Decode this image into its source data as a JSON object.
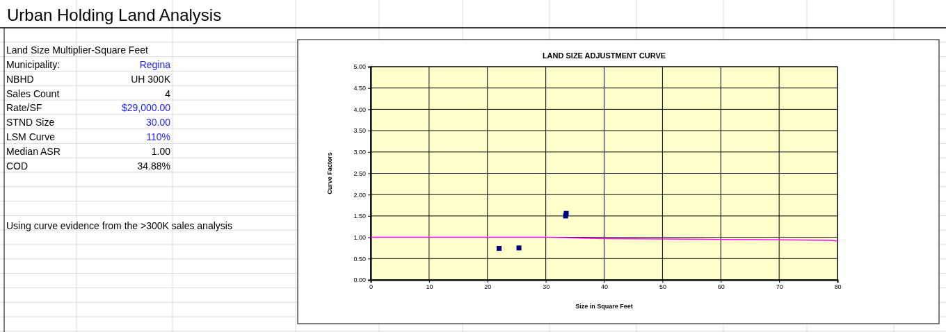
{
  "chart_data": {
    "type": "scatter",
    "title": "LAND SIZE ADJUSTMENT CURVE",
    "xlabel": "Size in Square Feet",
    "ylabel": "Curve Factors",
    "annotations": [
      "Urban Holding Land Analysis",
      "Land Size Multiplier-Square Feet",
      "Municipality:",
      "Regina",
      "NBHD",
      "UH 300K",
      "Sales Count",
      "4",
      "Rate/SF",
      "$29,000.00",
      "STND Size",
      "30.00",
      "LSM Curve",
      "110%",
      "Median ASR",
      "1.00",
      "COD",
      "34.88%",
      "Using curve evidence from the >300K sales analysis"
    ],
    "xlim": [
      0,
      80
    ],
    "xticks": [
      0,
      10,
      20,
      30,
      40,
      50,
      60,
      70,
      80
    ],
    "ylim": [
      0,
      5
    ],
    "yticks": [
      {
        "value": 0,
        "label": "0.00"
      },
      {
        "value": 0.5,
        "label": "0.50"
      },
      {
        "value": 1,
        "label": "1.00"
      },
      {
        "value": 1.5,
        "label": "1.50"
      },
      {
        "value": 2,
        "label": "2.00"
      },
      {
        "value": 2.5,
        "label": "2.50"
      },
      {
        "value": 3,
        "label": "3.00"
      },
      {
        "value": 3.5,
        "label": "3.50"
      },
      {
        "value": 4,
        "label": "4.00"
      },
      {
        "value": 4.5,
        "label": "4.50"
      },
      {
        "value": 5,
        "label": "5.00"
      }
    ],
    "grid": true,
    "series": [
      {
        "type": "line",
        "color": "#ff00ff",
        "marker": "none",
        "x": [
          0,
          30,
          40,
          50,
          60,
          70,
          79,
          80
        ],
        "values": [
          1.0,
          1.0,
          0.97,
          0.96,
          0.95,
          0.94,
          0.93,
          0.91
        ]
      },
      {
        "color": "#000080",
        "marker": "square",
        "x": [
          22,
          25.4,
          33.4,
          33.5
        ],
        "values": [
          0.74,
          0.75,
          1.5,
          1.56
        ]
      }
    ]
  }
}
